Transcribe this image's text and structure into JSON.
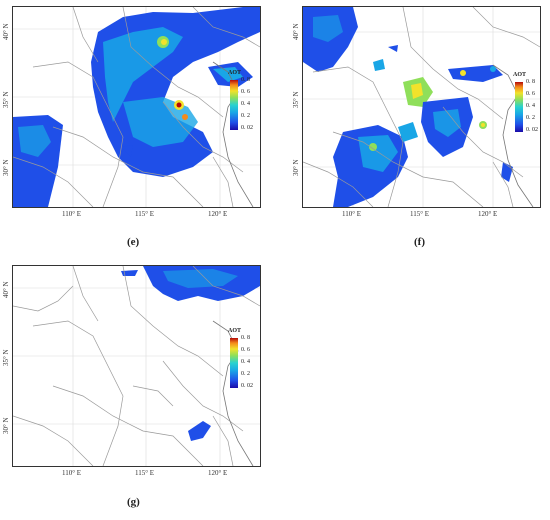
{
  "panels": [
    {
      "caption": "(e)",
      "lon_ticks": [
        "110° E",
        "115° E",
        "120° E"
      ],
      "lat_ticks": [
        "40° N",
        "35° N",
        "30° N"
      ],
      "legend": {
        "title": "AOT",
        "ticks": [
          "0. 8",
          "0. 6",
          "0. 4",
          "0. 2",
          "0. 02"
        ]
      }
    },
    {
      "caption": "(f)",
      "lon_ticks": [
        "110° E",
        "115° E",
        "120° E"
      ],
      "lat_ticks": [
        "40° N",
        "35° N",
        "30° N"
      ],
      "legend": {
        "title": "AOT",
        "ticks": [
          "0. 8",
          "0. 6",
          "0. 4",
          "0. 2",
          "0. 02"
        ]
      }
    },
    {
      "caption": "(g)",
      "lon_ticks": [
        "110° E",
        "115° E",
        "120° E"
      ],
      "lat_ticks": [
        "40° N",
        "35° N",
        "30° N"
      ],
      "legend": {
        "title": "AOT",
        "ticks": [
          "0. 8",
          "0. 6",
          "0. 4",
          "0. 2",
          "0. 02"
        ]
      }
    }
  ],
  "colors": {
    "low": "#1f4fe8",
    "mid": "#19a6e6",
    "high": "#f2e22b",
    "max": "#b40a0a",
    "border_lines": "#9a9a9a",
    "grid": "#d9d9d9"
  }
}
